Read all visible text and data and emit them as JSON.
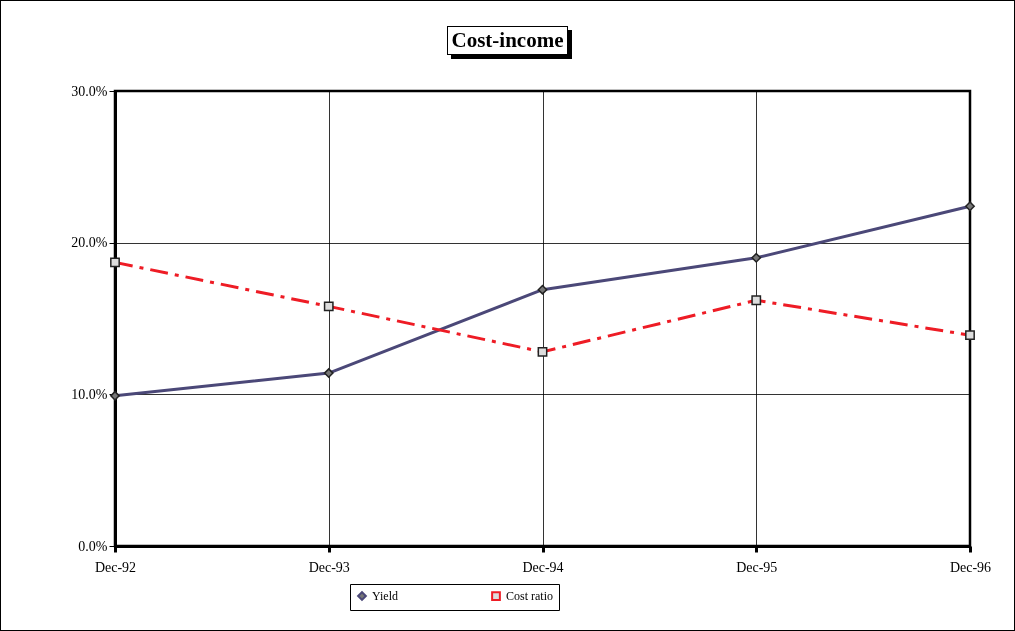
{
  "chart_data": {
    "type": "line",
    "title": "Cost-income",
    "categories": [
      "Dec-92",
      "Dec-93",
      "Dec-94",
      "Dec-95",
      "Dec-96"
    ],
    "series": [
      {
        "name": "Yield",
        "color": "#4b4878",
        "values": [
          9.9,
          11.4,
          16.9,
          19.0,
          22.4
        ],
        "marker": "diamond",
        "line_style": "solid"
      },
      {
        "name": "Cost ratio",
        "color": "#ee1c25",
        "values": [
          18.7,
          15.8,
          12.8,
          16.2,
          13.9
        ],
        "marker": "square",
        "line_style": "dashed"
      }
    ],
    "ylim": [
      0,
      30
    ],
    "yticks": [
      {
        "value": 0,
        "label": "0.0%"
      },
      {
        "value": 10,
        "label": "10.0%"
      },
      {
        "value": 20,
        "label": "20.0%"
      },
      {
        "value": 30,
        "label": "30.0%"
      }
    ],
    "grid": true,
    "legend": "bottom"
  }
}
